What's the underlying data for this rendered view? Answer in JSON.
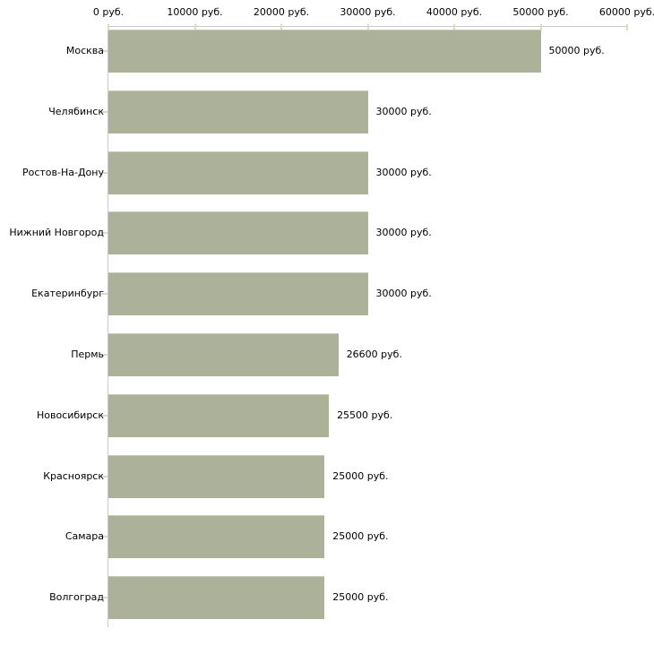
{
  "chart_data": {
    "type": "bar",
    "orientation": "horizontal",
    "title": "",
    "xlabel": "",
    "ylabel": "",
    "unit": "руб.",
    "categories": [
      "Москва",
      "Челябинск",
      "Ростов-На-Дону",
      "Нижний Новгород",
      "Екатеринбург",
      "Пермь",
      "Новосибирск",
      "Красноярск",
      "Самара",
      "Волгоград"
    ],
    "values": [
      50000,
      30000,
      30000,
      30000,
      30000,
      26600,
      25500,
      25000,
      25000,
      25000
    ],
    "value_labels": [
      "50000 руб.",
      "30000 руб.",
      "30000 руб.",
      "30000 руб.",
      "30000 руб.",
      "26600 руб.",
      "25500 руб.",
      "25000 руб.",
      "25000 руб.",
      "25000 руб."
    ],
    "axis": {
      "position": "top",
      "min": 0,
      "max": 60000,
      "tick_step": 10000,
      "tick_labels": [
        "0 руб.",
        "10000 руб.",
        "20000 руб.",
        "30000 руб.",
        "40000 руб.",
        "50000 руб.",
        "60000 руб."
      ]
    },
    "grid": false,
    "legend": false,
    "colors": {
      "background": "#ffffff",
      "bar": "#acb299",
      "bar_border_top": "#c6cbb4",
      "axis_line": "#c9c9c9",
      "tick": "#d8dcc0",
      "text": "#000000"
    }
  }
}
